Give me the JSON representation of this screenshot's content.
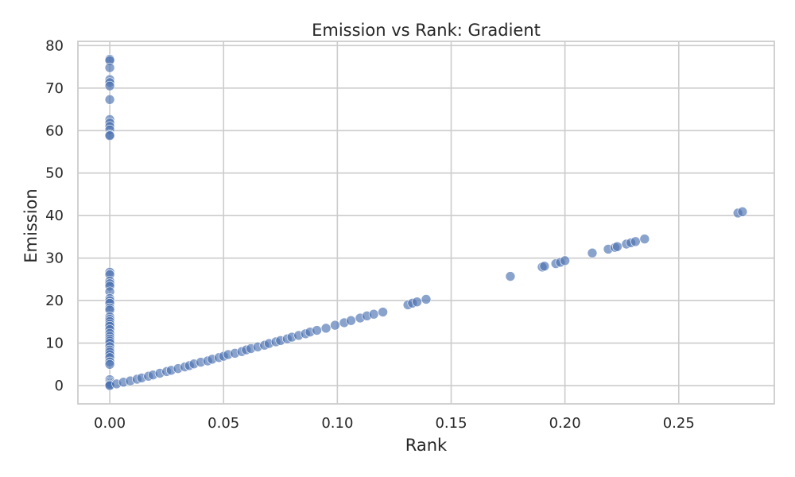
{
  "chart_data": {
    "type": "scatter",
    "title": "Emission vs Rank: Gradient",
    "xlabel": "Rank",
    "ylabel": "Emission",
    "xlim": [
      -0.014,
      0.292
    ],
    "ylim": [
      -4.3,
      81
    ],
    "xticks": [
      0.0,
      0.05,
      0.1,
      0.15,
      0.2,
      0.25
    ],
    "xtick_labels": [
      "0.00",
      "0.05",
      "0.10",
      "0.15",
      "0.20",
      "0.25"
    ],
    "yticks": [
      0,
      10,
      20,
      30,
      40,
      50,
      60,
      70,
      80
    ],
    "ytick_labels": [
      "0",
      "10",
      "20",
      "30",
      "40",
      "50",
      "60",
      "70",
      "80"
    ],
    "grid": true,
    "color": "#4c72b0",
    "points": [
      {
        "x": 0.0,
        "y": 76.8
      },
      {
        "x": 0.0,
        "y": 76.5
      },
      {
        "x": 0.0,
        "y": 74.8
      },
      {
        "x": 0.0,
        "y": 72.0
      },
      {
        "x": 0.0,
        "y": 71.3
      },
      {
        "x": 0.0,
        "y": 70.5
      },
      {
        "x": 0.0,
        "y": 67.3
      },
      {
        "x": 0.0,
        "y": 62.6
      },
      {
        "x": 0.0,
        "y": 61.8
      },
      {
        "x": 0.0,
        "y": 61.0
      },
      {
        "x": 0.0,
        "y": 60.2
      },
      {
        "x": 0.0,
        "y": 59.0
      },
      {
        "x": 0.0,
        "y": 58.8
      },
      {
        "x": 0.0,
        "y": 26.7
      },
      {
        "x": 0.0,
        "y": 26.1
      },
      {
        "x": 0.0,
        "y": 24.6
      },
      {
        "x": 0.0,
        "y": 24.0
      },
      {
        "x": 0.0,
        "y": 23.4
      },
      {
        "x": 0.0,
        "y": 22.1
      },
      {
        "x": 0.0,
        "y": 20.5
      },
      {
        "x": 0.0,
        "y": 20.0
      },
      {
        "x": 0.0,
        "y": 19.4
      },
      {
        "x": 0.0,
        "y": 18.3
      },
      {
        "x": 0.0,
        "y": 17.8
      },
      {
        "x": 0.0,
        "y": 16.2
      },
      {
        "x": 0.0,
        "y": 15.6
      },
      {
        "x": 0.0,
        "y": 15.1
      },
      {
        "x": 0.0,
        "y": 14.5
      },
      {
        "x": 0.0,
        "y": 14.0
      },
      {
        "x": 0.0,
        "y": 13.2
      },
      {
        "x": 0.0,
        "y": 12.3
      },
      {
        "x": 0.0,
        "y": 11.6
      },
      {
        "x": 0.0,
        "y": 11.0
      },
      {
        "x": 0.0,
        "y": 10.5
      },
      {
        "x": 0.0,
        "y": 10.0
      },
      {
        "x": 0.0,
        "y": 9.2
      },
      {
        "x": 0.0,
        "y": 8.4
      },
      {
        "x": 0.0,
        "y": 7.9
      },
      {
        "x": 0.0,
        "y": 7.3
      },
      {
        "x": 0.0,
        "y": 6.6
      },
      {
        "x": 0.0,
        "y": 5.6
      },
      {
        "x": 0.0,
        "y": 5.0
      },
      {
        "x": 0.0,
        "y": 1.4
      },
      {
        "x": 0.0,
        "y": 0.9
      },
      {
        "x": 0.0,
        "y": 0.5
      },
      {
        "x": 0.0,
        "y": 0.2
      },
      {
        "x": 0.0,
        "y": 0.0
      },
      {
        "x": 0.003,
        "y": 0.4
      },
      {
        "x": 0.006,
        "y": 0.8
      },
      {
        "x": 0.009,
        "y": 1.1
      },
      {
        "x": 0.012,
        "y": 1.5
      },
      {
        "x": 0.014,
        "y": 1.8
      },
      {
        "x": 0.017,
        "y": 2.2
      },
      {
        "x": 0.019,
        "y": 2.5
      },
      {
        "x": 0.022,
        "y": 2.9
      },
      {
        "x": 0.025,
        "y": 3.3
      },
      {
        "x": 0.027,
        "y": 3.6
      },
      {
        "x": 0.03,
        "y": 4.0
      },
      {
        "x": 0.033,
        "y": 4.4
      },
      {
        "x": 0.035,
        "y": 4.7
      },
      {
        "x": 0.037,
        "y": 5.1
      },
      {
        "x": 0.04,
        "y": 5.5
      },
      {
        "x": 0.043,
        "y": 5.8
      },
      {
        "x": 0.045,
        "y": 6.2
      },
      {
        "x": 0.048,
        "y": 6.6
      },
      {
        "x": 0.05,
        "y": 6.9
      },
      {
        "x": 0.052,
        "y": 7.3
      },
      {
        "x": 0.055,
        "y": 7.6
      },
      {
        "x": 0.058,
        "y": 8.0
      },
      {
        "x": 0.06,
        "y": 8.4
      },
      {
        "x": 0.062,
        "y": 8.7
      },
      {
        "x": 0.065,
        "y": 9.1
      },
      {
        "x": 0.068,
        "y": 9.5
      },
      {
        "x": 0.07,
        "y": 9.9
      },
      {
        "x": 0.073,
        "y": 10.3
      },
      {
        "x": 0.075,
        "y": 10.6
      },
      {
        "x": 0.078,
        "y": 11.0
      },
      {
        "x": 0.08,
        "y": 11.4
      },
      {
        "x": 0.083,
        "y": 11.8
      },
      {
        "x": 0.086,
        "y": 12.2
      },
      {
        "x": 0.088,
        "y": 12.6
      },
      {
        "x": 0.091,
        "y": 13.0
      },
      {
        "x": 0.095,
        "y": 13.5
      },
      {
        "x": 0.099,
        "y": 14.2
      },
      {
        "x": 0.103,
        "y": 14.8
      },
      {
        "x": 0.106,
        "y": 15.3
      },
      {
        "x": 0.11,
        "y": 15.9
      },
      {
        "x": 0.113,
        "y": 16.4
      },
      {
        "x": 0.116,
        "y": 16.8
      },
      {
        "x": 0.12,
        "y": 17.3
      },
      {
        "x": 0.131,
        "y": 19.0
      },
      {
        "x": 0.133,
        "y": 19.4
      },
      {
        "x": 0.135,
        "y": 19.7
      },
      {
        "x": 0.139,
        "y": 20.3
      },
      {
        "x": 0.176,
        "y": 25.7
      },
      {
        "x": 0.19,
        "y": 27.9
      },
      {
        "x": 0.191,
        "y": 28.1
      },
      {
        "x": 0.196,
        "y": 28.7
      },
      {
        "x": 0.198,
        "y": 29.0
      },
      {
        "x": 0.2,
        "y": 29.4
      },
      {
        "x": 0.212,
        "y": 31.2
      },
      {
        "x": 0.219,
        "y": 32.1
      },
      {
        "x": 0.222,
        "y": 32.5
      },
      {
        "x": 0.223,
        "y": 32.7
      },
      {
        "x": 0.227,
        "y": 33.3
      },
      {
        "x": 0.229,
        "y": 33.6
      },
      {
        "x": 0.231,
        "y": 33.9
      },
      {
        "x": 0.235,
        "y": 34.5
      },
      {
        "x": 0.276,
        "y": 40.6
      },
      {
        "x": 0.278,
        "y": 40.9
      }
    ]
  }
}
